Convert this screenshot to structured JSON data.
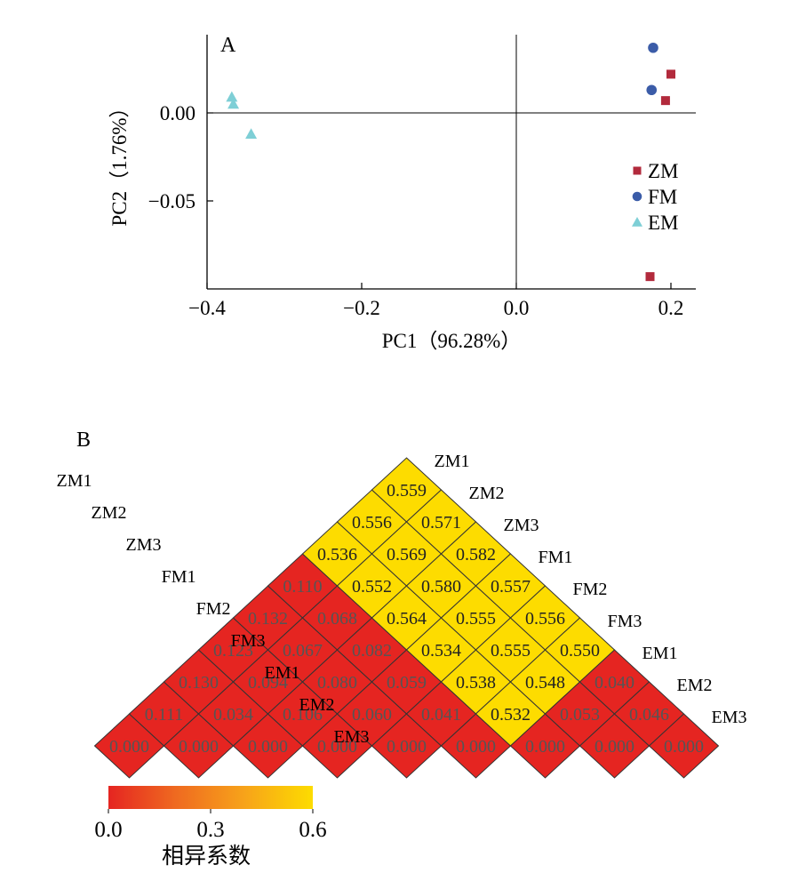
{
  "chart_data": [
    {
      "type": "scatter",
      "panel_label": "A",
      "xlabel": "PC1（96.28%）",
      "ylabel": "PC2（1.76%）",
      "xlim": [
        -0.4,
        0.23
      ],
      "ylim": [
        -0.1,
        0.045
      ],
      "xticks": [
        -0.4,
        -0.2,
        0.0,
        0.2
      ],
      "xtick_labels": [
        "−0.4",
        "−0.2",
        "0.0",
        "0.2"
      ],
      "yticks": [
        0.0,
        -0.05
      ],
      "ytick_labels": [
        "0.00",
        "−0.05"
      ],
      "legend_position": "right",
      "series": [
        {
          "name": "ZM",
          "marker": "square",
          "color": "#b22a3c",
          "points": [
            [
              0.2,
              0.022
            ],
            [
              0.193,
              0.007
            ],
            [
              0.173,
              -0.093
            ]
          ]
        },
        {
          "name": "FM",
          "marker": "circle",
          "color": "#3b5ca8",
          "points": [
            [
              0.177,
              0.037
            ],
            [
              0.175,
              0.013
            ]
          ]
        },
        {
          "name": "EM",
          "marker": "triangle",
          "color": "#7ecfd6",
          "points": [
            [
              -0.368,
              0.009
            ],
            [
              -0.366,
              0.005
            ],
            [
              -0.343,
              -0.012
            ]
          ]
        }
      ]
    },
    {
      "type": "heatmap",
      "panel_label": "B",
      "labels": [
        "ZM1",
        "ZM2",
        "ZM3",
        "FM1",
        "FM2",
        "FM3",
        "EM1",
        "EM2",
        "EM3"
      ],
      "matrix": [
        [
          "0.000",
          "0.111",
          "0.130",
          "0.123",
          "0.132",
          "0.110",
          "0.536",
          "0.556",
          "0.559"
        ],
        [
          "0.111",
          "0.000",
          "0.034",
          "0.094",
          "0.067",
          "0.068",
          "0.552",
          "0.569",
          "0.571"
        ],
        [
          "0.130",
          "0.034",
          "0.000",
          "0.106",
          "0.080",
          "0.082",
          "0.564",
          "0.580",
          "0.582"
        ],
        [
          "0.123",
          "0.094",
          "0.106",
          "0.000",
          "0.060",
          "0.059",
          "0.534",
          "0.555",
          "0.557"
        ],
        [
          "0.132",
          "0.067",
          "0.080",
          "0.060",
          "0.000",
          "0.041",
          "0.538",
          "0.555",
          "0.556"
        ],
        [
          "0.110",
          "0.068",
          "0.082",
          "0.059",
          "0.041",
          "0.000",
          "0.532",
          "0.548",
          "0.550"
        ],
        [
          "0.536",
          "0.552",
          "0.564",
          "0.534",
          "0.538",
          "0.532",
          "0.000",
          "0.053",
          "0.040"
        ],
        [
          "0.556",
          "0.569",
          "0.580",
          "0.555",
          "0.555",
          "0.548",
          "0.053",
          "0.000",
          "0.046"
        ],
        [
          "0.559",
          "0.571",
          "0.582",
          "0.557",
          "0.556",
          "0.550",
          "0.040",
          "0.046",
          "0.000"
        ]
      ],
      "low_color": "#e52521",
      "high_color": "#fddc00",
      "colorbar": {
        "range": [
          0.0,
          0.6
        ],
        "tick_labels": [
          "0.0",
          "0.3",
          "0.6"
        ],
        "gradient": [
          "#e52521",
          "#ef6a20",
          "#f7a21a",
          "#fddc00"
        ],
        "label": "相异系数"
      }
    }
  ]
}
